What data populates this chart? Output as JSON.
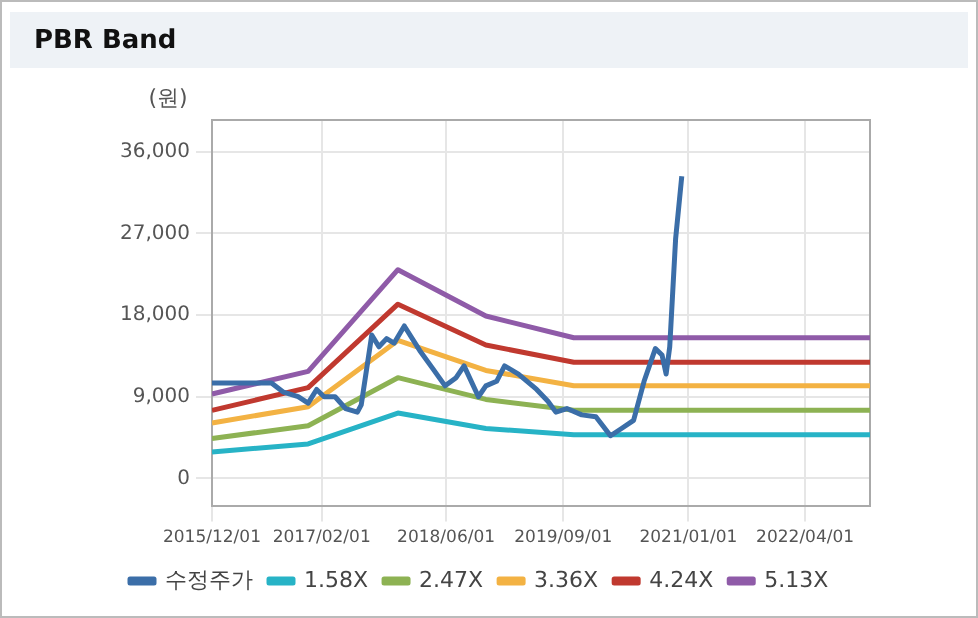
{
  "chart_data": {
    "type": "line",
    "title": "PBR Band",
    "ylabel": "(원)",
    "xlim": [
      "2015-12-01",
      "2022-12-10"
    ],
    "xticks": [
      {
        "value": "2015-12-01",
        "label": "2015/12/01"
      },
      {
        "value": "2017-02-01",
        "label": "2017/02/01"
      },
      {
        "value": "2018-06-01",
        "label": "2018/06/01"
      },
      {
        "value": "2019-09-01",
        "label": "2019/09/01"
      },
      {
        "value": "2021-01-01",
        "label": "2021/01/01"
      },
      {
        "value": "2022-04-01",
        "label": "2022/04/01"
      }
    ],
    "ylim": [
      -3000,
      39500
    ],
    "yticks": [
      {
        "value": 0,
        "label": "0"
      },
      {
        "value": 9000,
        "label": "9,000"
      },
      {
        "value": 18000,
        "label": "18,000"
      },
      {
        "value": 27000,
        "label": "27,000"
      },
      {
        "value": 36000,
        "label": "36,000"
      }
    ],
    "grid": true,
    "legend": "bottom",
    "marker": "none",
    "line_style": "solid",
    "series": [
      {
        "name": "수정주가",
        "color": "#3b6ea8",
        "x": [
          "2015-12-01",
          "2016-07-20",
          "2016-09-05",
          "2016-11-01",
          "2016-12-10",
          "2017-01-12",
          "2017-02-10",
          "2017-03-25",
          "2017-05-05",
          "2017-06-20",
          "2017-07-05",
          "2017-08-15",
          "2017-09-12",
          "2017-10-12",
          "2017-11-10",
          "2017-12-20",
          "2018-02-18",
          "2018-04-15",
          "2018-05-28",
          "2018-07-10",
          "2018-08-10",
          "2018-10-05",
          "2018-11-03",
          "2018-12-15",
          "2019-01-15",
          "2019-03-10",
          "2019-05-20",
          "2019-07-03",
          "2019-08-03",
          "2019-09-15",
          "2019-11-12",
          "2020-01-06",
          "2020-03-03",
          "2020-04-15",
          "2020-06-01",
          "2020-07-12",
          "2020-08-25",
          "2020-09-20",
          "2020-10-06",
          "2020-10-20",
          "2020-11-12",
          "2020-12-06"
        ],
        "values": [
          10500,
          10500,
          9500,
          9000,
          8300,
          9800,
          9000,
          9000,
          7700,
          7300,
          8100,
          15800,
          14500,
          15400,
          14900,
          16800,
          14100,
          11900,
          10200,
          11100,
          12400,
          9000,
          10200,
          10700,
          12400,
          11500,
          9800,
          8500,
          7300,
          7700,
          7000,
          6800,
          4700,
          5500,
          6400,
          10700,
          14300,
          13600,
          11500,
          14500,
          26400,
          33300
        ]
      },
      {
        "name": "1.58X",
        "color": "#27b3c6",
        "x": [
          "2015-12-01",
          "2016-12-10",
          "2017-11-25",
          "2018-11-03",
          "2019-10-12",
          "2022-12-10"
        ],
        "values": [
          2900,
          3800,
          7200,
          5500,
          4800,
          4800
        ]
      },
      {
        "name": "2.47X",
        "color": "#8db253",
        "x": [
          "2015-12-01",
          "2016-12-10",
          "2017-11-25",
          "2018-11-03",
          "2019-10-12",
          "2022-12-10"
        ],
        "values": [
          4400,
          5800,
          11100,
          8700,
          7500,
          7500
        ]
      },
      {
        "name": "3.36X",
        "color": "#f3b243",
        "x": [
          "2015-12-01",
          "2016-12-10",
          "2017-11-25",
          "2018-11-03",
          "2019-10-12",
          "2022-12-10"
        ],
        "values": [
          6100,
          7900,
          15200,
          11900,
          10200,
          10200
        ]
      },
      {
        "name": "4.24X",
        "color": "#c0392f",
        "x": [
          "2015-12-01",
          "2016-12-10",
          "2017-11-25",
          "2018-11-03",
          "2019-10-12",
          "2022-12-10"
        ],
        "values": [
          7500,
          10000,
          19200,
          14700,
          12800,
          12800
        ]
      },
      {
        "name": "5.13X",
        "color": "#8f5ba8",
        "x": [
          "2015-12-01",
          "2016-12-10",
          "2017-11-25",
          "2018-11-03",
          "2019-10-12",
          "2022-12-10"
        ],
        "values": [
          9300,
          11800,
          23000,
          17900,
          15500,
          15500
        ]
      }
    ]
  }
}
